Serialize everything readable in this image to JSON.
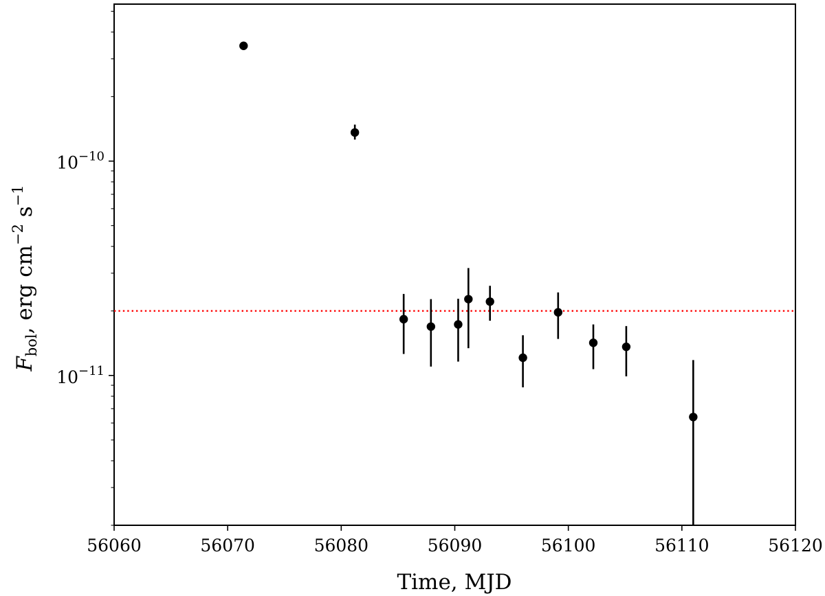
{
  "chart_data": {
    "type": "scatter",
    "xlabel": "Time, MJD",
    "ylabel": {
      "var": "F",
      "sub": "bol",
      "units": ", erg cm",
      "exp1": "−2",
      "s": " s",
      "exp2": "−1"
    },
    "xlim": [
      56060,
      56120
    ],
    "ylim": [
      2e-12,
      5.4e-10
    ],
    "yscale": "log",
    "x_ticks": [
      56060,
      56070,
      56080,
      56090,
      56100,
      56110,
      56120
    ],
    "y_ticks": [
      {
        "value": 1e-11,
        "base": "10",
        "exp": "−11"
      },
      {
        "value": 1e-10,
        "base": "10",
        "exp": "−10"
      }
    ],
    "grid": false,
    "points": [
      {
        "x": 56071.4,
        "y": 3.45e-10,
        "ylo": 3.3e-10,
        "yhi": 3.6e-10
      },
      {
        "x": 56081.2,
        "y": 1.36e-10,
        "ylo": 1.26e-10,
        "yhi": 1.48e-10
      },
      {
        "x": 56085.5,
        "y": 1.83e-11,
        "ylo": 1.26e-11,
        "yhi": 2.4e-11
      },
      {
        "x": 56087.9,
        "y": 1.69e-11,
        "ylo": 1.1e-11,
        "yhi": 2.27e-11
      },
      {
        "x": 56090.3,
        "y": 1.73e-11,
        "ylo": 1.16e-11,
        "yhi": 2.28e-11
      },
      {
        "x": 56091.2,
        "y": 2.27e-11,
        "ylo": 1.34e-11,
        "yhi": 3.17e-11
      },
      {
        "x": 56093.1,
        "y": 2.21e-11,
        "ylo": 1.8e-11,
        "yhi": 2.62e-11
      },
      {
        "x": 56096.0,
        "y": 1.21e-11,
        "ylo": 8.8e-12,
        "yhi": 1.54e-11
      },
      {
        "x": 56099.1,
        "y": 1.97e-11,
        "ylo": 1.48e-11,
        "yhi": 2.44e-11
      },
      {
        "x": 56102.2,
        "y": 1.42e-11,
        "ylo": 1.07e-11,
        "yhi": 1.73e-11
      },
      {
        "x": 56105.1,
        "y": 1.36e-11,
        "ylo": 9.9e-12,
        "yhi": 1.7e-11
      },
      {
        "x": 56111.0,
        "y": 6.4e-12,
        "ylo": 2e-12,
        "yhi": 1.18e-11
      }
    ],
    "reference_line": {
      "y": 2e-11,
      "color": "#ff0000",
      "style": "dotted"
    },
    "marker_color": "#000000"
  }
}
